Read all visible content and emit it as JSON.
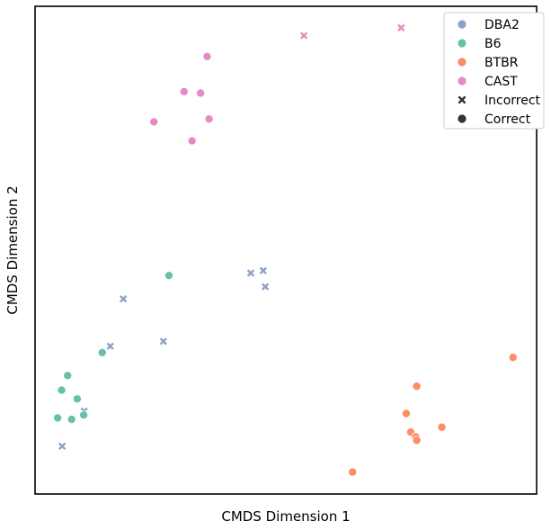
{
  "chart_data": {
    "type": "scatter",
    "title": "",
    "xlabel": "CMDS Dimension 1",
    "ylabel": "CMDS Dimension 2",
    "xlim": [
      0,
      100
    ],
    "ylim": [
      0,
      100
    ],
    "xticks": false,
    "yticks": false,
    "grid": false,
    "legend_position": "top-right",
    "series": [
      {
        "name": "DBA2",
        "color": "#8da0cb",
        "points": [
          {
            "x": 17.6,
            "y": 40.0,
            "marker": "x"
          },
          {
            "x": 43.0,
            "y": 45.3,
            "marker": "x"
          },
          {
            "x": 45.5,
            "y": 45.8,
            "marker": "x"
          },
          {
            "x": 45.9,
            "y": 42.5,
            "marker": "x"
          },
          {
            "x": 25.6,
            "y": 31.3,
            "marker": "x"
          },
          {
            "x": 15.0,
            "y": 30.3,
            "marker": "x"
          },
          {
            "x": 9.8,
            "y": 17.0,
            "marker": "x"
          },
          {
            "x": 5.4,
            "y": 9.8,
            "marker": "x"
          }
        ]
      },
      {
        "name": "B6",
        "color": "#66c2a5",
        "points": [
          {
            "x": 26.7,
            "y": 44.8,
            "marker": "o"
          },
          {
            "x": 13.4,
            "y": 29.0,
            "marker": "o"
          },
          {
            "x": 6.5,
            "y": 24.3,
            "marker": "o"
          },
          {
            "x": 5.3,
            "y": 21.3,
            "marker": "o"
          },
          {
            "x": 8.4,
            "y": 19.5,
            "marker": "o"
          },
          {
            "x": 9.7,
            "y": 16.2,
            "marker": "o"
          },
          {
            "x": 4.5,
            "y": 15.6,
            "marker": "o"
          },
          {
            "x": 7.3,
            "y": 15.3,
            "marker": "o"
          }
        ]
      },
      {
        "name": "BTBR",
        "color": "#fc8d62",
        "points": [
          {
            "x": 95.3,
            "y": 28.0,
            "marker": "o"
          },
          {
            "x": 76.1,
            "y": 22.1,
            "marker": "o"
          },
          {
            "x": 74.0,
            "y": 16.5,
            "marker": "o"
          },
          {
            "x": 81.1,
            "y": 13.7,
            "marker": "o"
          },
          {
            "x": 74.9,
            "y": 12.7,
            "marker": "o"
          },
          {
            "x": 75.9,
            "y": 11.7,
            "marker": "o"
          },
          {
            "x": 76.1,
            "y": 11.0,
            "marker": "o"
          },
          {
            "x": 63.3,
            "y": 4.5,
            "marker": "o"
          }
        ]
      },
      {
        "name": "CAST",
        "color": "#e78ac3",
        "points": [
          {
            "x": 53.6,
            "y": 94.0,
            "marker": "x"
          },
          {
            "x": 73.0,
            "y": 95.6,
            "marker": "x"
          },
          {
            "x": 34.3,
            "y": 89.7,
            "marker": "o"
          },
          {
            "x": 29.7,
            "y": 82.5,
            "marker": "o"
          },
          {
            "x": 33.0,
            "y": 82.2,
            "marker": "o"
          },
          {
            "x": 23.7,
            "y": 76.3,
            "marker": "o"
          },
          {
            "x": 34.7,
            "y": 76.9,
            "marker": "o"
          },
          {
            "x": 31.3,
            "y": 72.4,
            "marker": "o"
          }
        ]
      }
    ],
    "legend": [
      {
        "label": "DBA2",
        "color": "#8da0cb",
        "marker": "o"
      },
      {
        "label": "B6",
        "color": "#66c2a5",
        "marker": "o"
      },
      {
        "label": "BTBR",
        "color": "#fc8d62",
        "marker": "o"
      },
      {
        "label": "CAST",
        "color": "#e78ac3",
        "marker": "o"
      },
      {
        "label": "Incorrect",
        "color": "#333333",
        "marker": "x"
      },
      {
        "label": "Correct",
        "color": "#333333",
        "marker": "o"
      }
    ]
  }
}
